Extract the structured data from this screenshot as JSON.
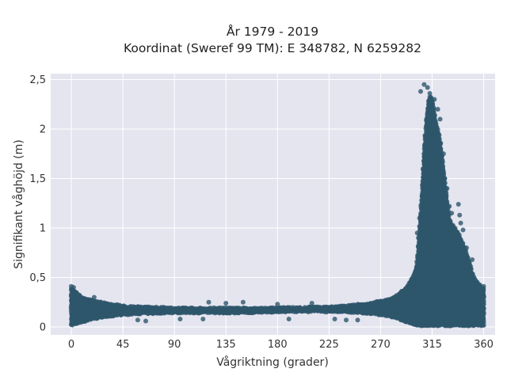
{
  "chart_data": {
    "type": "scatter",
    "title_lines": [
      "År 1979 - 2019",
      "Koordinat (Sweref 99 TM): E 348782, N 6259282"
    ],
    "xlabel": "Vågriktning (grader)",
    "ylabel": "Signifikant våghöjd (m)",
    "xlim": [
      -18,
      370
    ],
    "ylim": [
      -0.08,
      2.56
    ],
    "x_ticks": [
      0,
      45,
      90,
      135,
      180,
      225,
      270,
      315,
      360
    ],
    "x_tick_labels": [
      "0",
      "45",
      "90",
      "135",
      "180",
      "225",
      "270",
      "315",
      "360"
    ],
    "y_ticks": [
      0,
      0.5,
      1,
      1.5,
      2,
      2.5
    ],
    "y_tick_labels": [
      "0",
      "0,5",
      "1",
      "1,5",
      "2",
      "2,5"
    ],
    "grid": true,
    "legend": "none",
    "colors": {
      "marker": "#2e566c",
      "plot_background": "#e5e5f0",
      "grid": "#ffffff"
    },
    "envelope": {
      "x": [
        0,
        10,
        20,
        30,
        45,
        60,
        90,
        120,
        135,
        150,
        180,
        210,
        225,
        240,
        255,
        270,
        280,
        285,
        290,
        295,
        300,
        302,
        304,
        306,
        308,
        310,
        312,
        314,
        316,
        318,
        320,
        322,
        324,
        326,
        328,
        330,
        332,
        335,
        338,
        340,
        342,
        345,
        348,
        350,
        352,
        355,
        358,
        360
      ],
      "upper": [
        0.4,
        0.3,
        0.27,
        0.25,
        0.22,
        0.21,
        0.2,
        0.2,
        0.2,
        0.2,
        0.2,
        0.21,
        0.21,
        0.22,
        0.24,
        0.27,
        0.3,
        0.33,
        0.38,
        0.45,
        0.55,
        0.68,
        1.0,
        1.35,
        1.8,
        2.1,
        2.3,
        2.35,
        2.25,
        2.1,
        2.0,
        1.9,
        1.7,
        1.5,
        1.3,
        1.1,
        1.05,
        1.0,
        0.95,
        0.9,
        0.85,
        0.75,
        0.65,
        0.55,
        0.5,
        0.45,
        0.42,
        0.4
      ],
      "lower": [
        0.01,
        0.05,
        0.08,
        0.1,
        0.12,
        0.13,
        0.14,
        0.14,
        0.14,
        0.14,
        0.15,
        0.15,
        0.15,
        0.15,
        0.14,
        0.12,
        0.1,
        0.08,
        0.06,
        0.04,
        0.02,
        0.02,
        0.01,
        0.01,
        0.01,
        0.01,
        0.01,
        0.01,
        0.01,
        0.01,
        0.01,
        0.01,
        0.01,
        0.01,
        0.01,
        0.01,
        0.01,
        0.01,
        0.01,
        0.01,
        0.01,
        0.01,
        0.01,
        0.01,
        0.01,
        0.01,
        0.01,
        0.01
      ]
    },
    "outlier_points": [
      {
        "x": 308,
        "y": 2.45
      },
      {
        "x": 305,
        "y": 2.38
      },
      {
        "x": 311,
        "y": 2.42
      },
      {
        "x": 313,
        "y": 2.36
      },
      {
        "x": 317,
        "y": 2.3
      },
      {
        "x": 320,
        "y": 2.2
      },
      {
        "x": 322,
        "y": 2.1
      },
      {
        "x": 325,
        "y": 1.75
      },
      {
        "x": 326,
        "y": 1.5
      },
      {
        "x": 328,
        "y": 1.4
      },
      {
        "x": 330,
        "y": 1.22
      },
      {
        "x": 332,
        "y": 1.15
      },
      {
        "x": 338,
        "y": 1.24
      },
      {
        "x": 339,
        "y": 1.13
      },
      {
        "x": 340,
        "y": 1.05
      },
      {
        "x": 342,
        "y": 0.98
      },
      {
        "x": 300,
        "y": 0.55
      },
      {
        "x": 302,
        "y": 0.95
      },
      {
        "x": 303,
        "y": 0.9
      },
      {
        "x": 304,
        "y": 1.1
      },
      {
        "x": 0,
        "y": 0.41
      },
      {
        "x": 2,
        "y": 0.4
      },
      {
        "x": 20,
        "y": 0.3
      },
      {
        "x": 120,
        "y": 0.25
      },
      {
        "x": 135,
        "y": 0.24
      },
      {
        "x": 150,
        "y": 0.25
      },
      {
        "x": 180,
        "y": 0.23
      },
      {
        "x": 210,
        "y": 0.24
      },
      {
        "x": 230,
        "y": 0.08
      },
      {
        "x": 240,
        "y": 0.07
      },
      {
        "x": 250,
        "y": 0.07
      },
      {
        "x": 58,
        "y": 0.07
      },
      {
        "x": 65,
        "y": 0.06
      },
      {
        "x": 115,
        "y": 0.08
      },
      {
        "x": 95,
        "y": 0.08
      },
      {
        "x": 190,
        "y": 0.08
      },
      {
        "x": 360,
        "y": 0.41
      },
      {
        "x": 350,
        "y": 0.68
      },
      {
        "x": 345,
        "y": 0.8
      }
    ]
  }
}
